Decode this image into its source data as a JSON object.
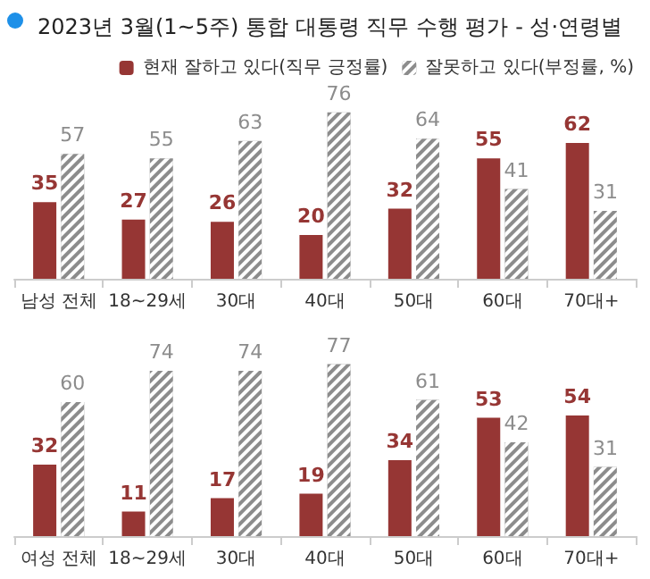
{
  "chart_data": [
    {
      "type": "bar",
      "title": "2023년 3월(1~5주) 통합 대통령 직무 수행 평가 - 성·연령별",
      "categories": [
        "남성 전체",
        "18~29세",
        "30대",
        "40대",
        "50대",
        "60대",
        "70대+"
      ],
      "series": [
        {
          "name": "현재 잘하고 있다(직무 긍정률)",
          "color": "#963634",
          "values": [
            35,
            27,
            26,
            20,
            32,
            55,
            62
          ]
        },
        {
          "name": "잘못하고 있다(부정률, %)",
          "color": "#8c8c8c",
          "values": [
            57,
            55,
            63,
            76,
            64,
            41,
            31
          ]
        }
      ],
      "data_labels": true,
      "legend": "top right",
      "tick_labels": "x"
    },
    {
      "type": "bar",
      "categories": [
        "여성 전체",
        "18~29세",
        "30대",
        "40대",
        "50대",
        "60대",
        "70대+"
      ],
      "series": [
        {
          "color": "#963634",
          "values": [
            32,
            11,
            17,
            19,
            34,
            53,
            54
          ]
        },
        {
          "color": "#8c8c8c",
          "values": [
            60,
            74,
            74,
            77,
            61,
            42,
            31
          ]
        }
      ],
      "data_labels": true,
      "legend": false,
      "tick_labels": "x"
    }
  ]
}
